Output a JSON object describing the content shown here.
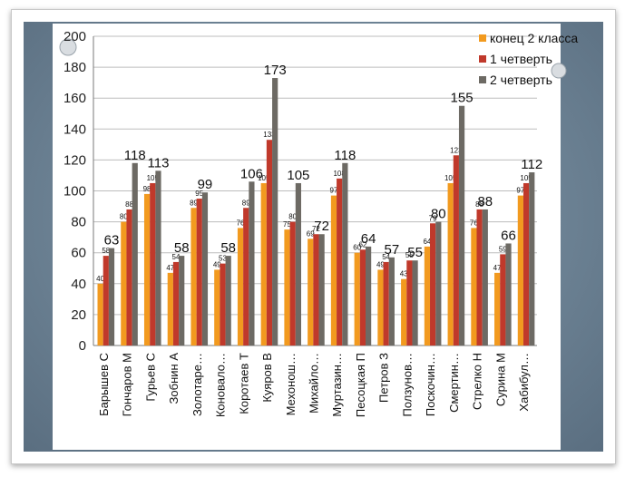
{
  "chart_data": {
    "type": "bar",
    "title": "",
    "xlabel": "",
    "ylabel": "",
    "ylim": [
      0,
      200
    ],
    "yticks": [
      0,
      20,
      40,
      60,
      80,
      100,
      120,
      140,
      160,
      180,
      200
    ],
    "grid": true,
    "legend_position": "top-right",
    "categories": [
      "Барышев С",
      "Гончаров М",
      "Гурьев С",
      "Зобнин А",
      "Золотаре…",
      "Коновало…",
      "Коротаев Т",
      "Куяров В",
      "Мехонош…",
      "Михайло…",
      "Муртазин…",
      "Песоцкая П",
      "Петров З",
      "Ползунов…",
      "Поскочин…",
      "Смертин…",
      "Стрелко Н",
      "Сурина М",
      "Хабибул…"
    ],
    "series": [
      {
        "name": "конец 2 класса",
        "color": "#f29a1f",
        "values": [
          40,
          80,
          98,
          47,
          89,
          49,
          76,
          105,
          75,
          69,
          97,
          60,
          49,
          43,
          64,
          105,
          76,
          47,
          97
        ],
        "labels": [
          "40",
          "80",
          "98",
          "47",
          "89",
          "49",
          "76",
          "105",
          "75",
          "69",
          "97",
          "60",
          "49",
          "43",
          "64",
          "105",
          "76",
          "47",
          "97"
        ]
      },
      {
        "name": "1 четверть",
        "color": "#c0392b",
        "values": [
          58,
          88,
          105,
          54,
          95,
          53,
          89,
          133,
          80,
          72,
          108,
          62,
          54,
          55,
          79,
          123,
          88,
          59,
          105
        ],
        "labels": [
          "58",
          "88",
          "105",
          "54",
          "95",
          "53",
          "89",
          "133",
          "80",
          "72",
          "108",
          "62",
          "54",
          "55",
          "79",
          "123",
          "88",
          "59",
          "105"
        ]
      },
      {
        "name": "2 четверть",
        "color": "#6d6a64",
        "values": [
          63,
          118,
          113,
          58,
          99,
          58,
          106,
          173,
          105,
          72,
          118,
          64,
          57,
          55,
          80,
          155,
          88,
          66,
          112
        ],
        "labels": [
          "63",
          "118",
          "113",
          "58",
          "99",
          "58",
          "106",
          "173",
          "105",
          "72",
          "118",
          "64",
          "57",
          "55",
          "80",
          "155",
          "88",
          "66",
          "112"
        ]
      }
    ]
  }
}
